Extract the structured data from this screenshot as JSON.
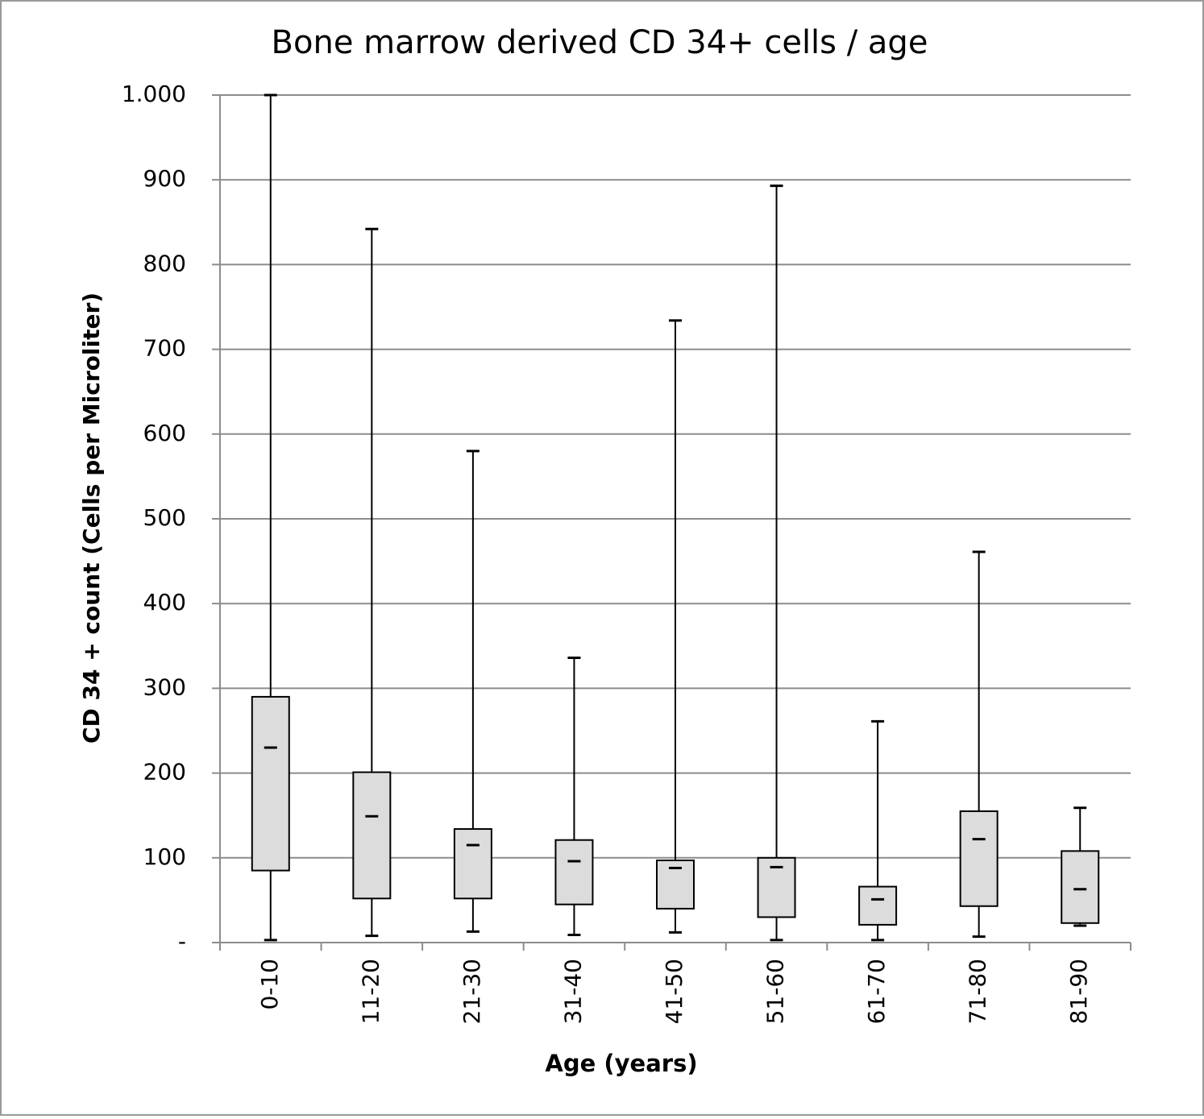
{
  "chart_data": {
    "type": "box",
    "title": "Bone marrow derived CD 34+ cells / age",
    "x_label": "Age (years)",
    "y_label": "CD 34 + count (Cells per Microliter)",
    "categories": [
      "0-10",
      "11-20",
      "21-30",
      "31-40",
      "41-50",
      "51-60",
      "61-70",
      "71-80",
      "81-90"
    ],
    "min": [
      3,
      8,
      13,
      9,
      12,
      3,
      3,
      7,
      20
    ],
    "q1": [
      85,
      52,
      52,
      45,
      40,
      30,
      21,
      43,
      23
    ],
    "median": [
      230,
      149,
      115,
      96,
      88,
      89,
      51,
      122,
      63
    ],
    "q3": [
      290,
      201,
      134,
      121,
      97,
      100,
      66,
      155,
      108
    ],
    "max": [
      1000,
      842,
      580,
      336,
      734,
      893,
      261,
      461,
      159
    ],
    "color": "#dcdcdc",
    "ylim": [
      0,
      1000
    ],
    "yticks": [
      {
        "value": 0,
        "label": "-"
      },
      100,
      200,
      300,
      400,
      500,
      600,
      700,
      800,
      900,
      {
        "value": 1000,
        "label": "1.000"
      }
    ],
    "grid": true
  }
}
